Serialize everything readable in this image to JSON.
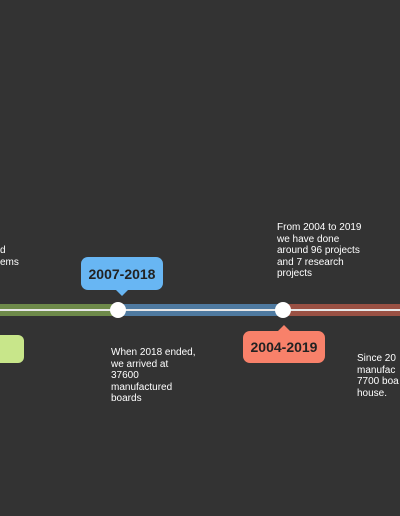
{
  "timeline": {
    "colors": {
      "background": "#333333",
      "green_segment": "#6e8a4a",
      "blue_segment": "#4f7aa0",
      "red_segment": "#9a5144",
      "blue_badge": "#68b6f3",
      "orange_badge": "#f8816a",
      "green_badge": "#c8e68a"
    },
    "top_text": "From 2004 to 2019\nwe have done\naround 96 projects\nand 7 research\nprojects",
    "left_partial_text": "d\nems",
    "badge_2007": "2007-2018",
    "badge_2004": "2004-2019",
    "bottom_text_1": "When 2018 ended,\nwe arrived at\n37600\nmanufactured\nboards",
    "bottom_text_2": "Since 20\nmanufac\n7700 boa\nhouse."
  }
}
